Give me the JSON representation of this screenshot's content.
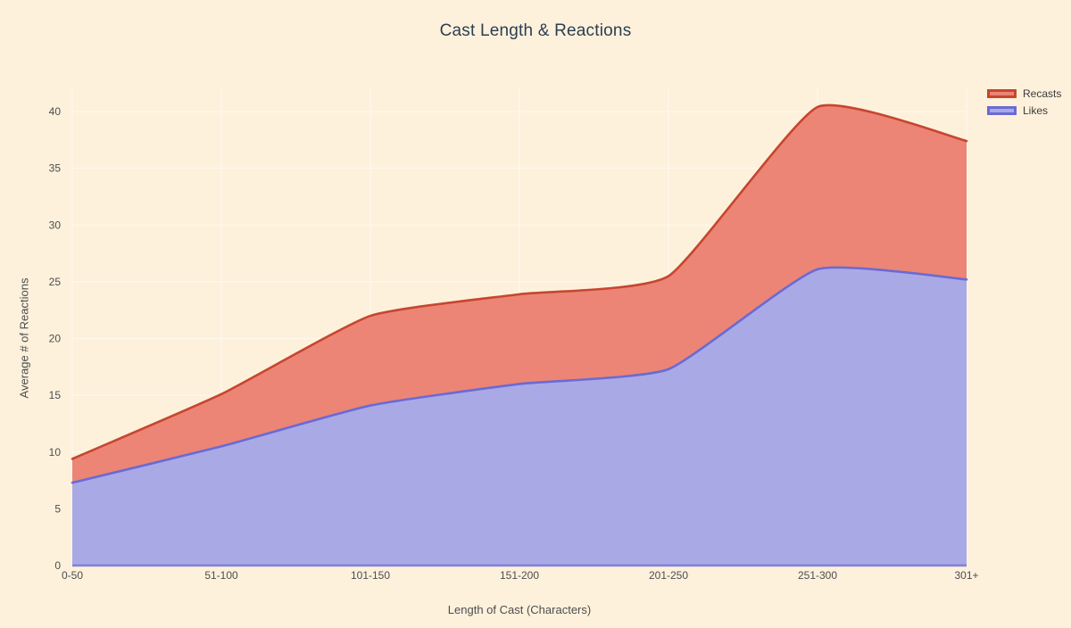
{
  "window": {
    "background": "#fdf1dc"
  },
  "chart": {
    "title": "Cast Length & Reactions",
    "title_color": "#2d3e50"
  },
  "legend": {
    "position": "top-right",
    "text_color": "#3b3b3b",
    "items": [
      {
        "label": "Recasts",
        "fill": "#ec8575",
        "border": "#c7462f"
      },
      {
        "label": "Likes",
        "fill": "#a9a9e6",
        "border": "#6a6ad4"
      }
    ]
  },
  "axes": {
    "x": {
      "label": "Length of Cast (Characters)"
    },
    "y": {
      "label": "Average # of Reactions"
    },
    "tick_color": "#4d4d4d",
    "label_color": "#4d4d4d"
  },
  "chart_data": {
    "type": "area",
    "title": "Cast Length & Reactions",
    "xlabel": "Length of Cast (Characters)",
    "ylabel": "Average # of Reactions",
    "categories": [
      "0-50",
      "51-100",
      "101-150",
      "151-200",
      "201-250",
      "251-300",
      "301+"
    ],
    "series": [
      {
        "name": "Recasts",
        "values": [
          9.4,
          15.1,
          22.0,
          23.9,
          25.5,
          40.4,
          37.4
        ],
        "fill": "#ec8575",
        "line": "#c7462f"
      },
      {
        "name": "Likes",
        "values": [
          7.3,
          10.5,
          14.1,
          16.0,
          17.3,
          26.1,
          25.2
        ],
        "fill": "#a9a9e6",
        "line": "#6a6ad4"
      }
    ],
    "stacked": false,
    "fill_to": "zero",
    "ylim": [
      0,
      42
    ],
    "yticks": [
      0,
      5,
      10,
      15,
      20,
      25,
      30,
      35,
      40
    ],
    "grid": true,
    "grid_color": "rgba(255,255,255,0.55)",
    "legend_position": "top-right"
  }
}
